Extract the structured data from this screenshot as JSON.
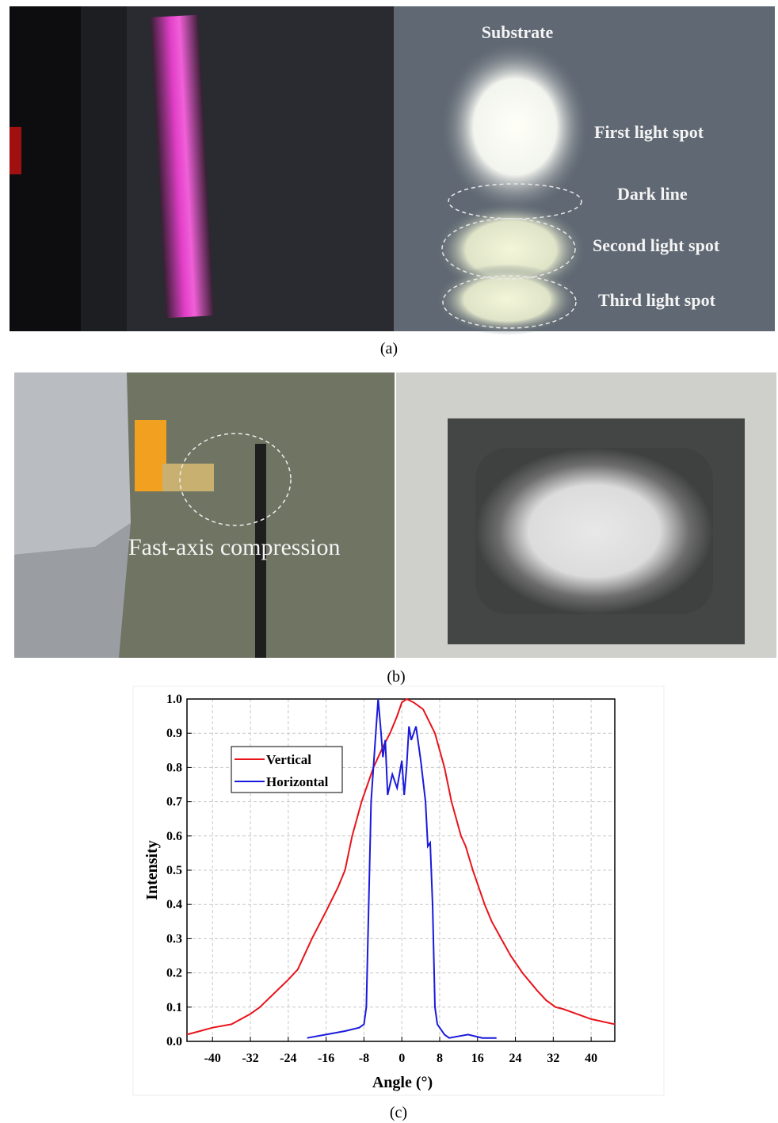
{
  "panel_a": {
    "labels": [
      "Substrate",
      "First light spot",
      "Dark line",
      "Second light spot",
      "Third light spot"
    ],
    "caption": "(a)"
  },
  "panel_b": {
    "label": "Fast-axis compression",
    "caption": "(b)"
  },
  "chart_data": {
    "type": "line",
    "xlabel": "Angle (°)",
    "ylabel": "Intensity",
    "caption": "(c)",
    "xlim": [
      -45.4,
      45
    ],
    "ylim": [
      0,
      1
    ],
    "xticks": [
      -40,
      -32,
      -24,
      -16,
      -8,
      0,
      8,
      16,
      24,
      32,
      40
    ],
    "yticks": [
      {
        "value": 0,
        "label": "0.0"
      },
      0.1,
      0.2,
      0.3,
      0.4,
      0.5,
      0.6,
      0.7,
      0.8,
      0.9,
      {
        "value": 1,
        "label": "1.0"
      }
    ],
    "grid": true,
    "legend": "upper left",
    "series": [
      {
        "name": "Vertical",
        "color": "#e8141b",
        "x": [
          -45.4,
          -40,
          -36,
          -32,
          -30,
          -27,
          -24,
          -22,
          -19,
          -16,
          -13.5,
          -12,
          -10.5,
          -8.5,
          -6,
          -4,
          -2.5,
          -1,
          0,
          1,
          2.5,
          4.5,
          7,
          9,
          10.5,
          12.5,
          13.5,
          15,
          17.5,
          19,
          21,
          23,
          25.5,
          28.5,
          30.5,
          32.5,
          34,
          37,
          40,
          45
        ],
        "values": [
          0.02,
          0.04,
          0.05,
          0.08,
          0.1,
          0.14,
          0.18,
          0.21,
          0.3,
          0.38,
          0.45,
          0.5,
          0.6,
          0.7,
          0.8,
          0.86,
          0.9,
          0.95,
          0.99,
          1.0,
          0.99,
          0.97,
          0.9,
          0.8,
          0.7,
          0.6,
          0.57,
          0.5,
          0.4,
          0.35,
          0.3,
          0.25,
          0.2,
          0.15,
          0.12,
          0.1,
          0.095,
          0.08,
          0.065,
          0.05
        ]
      },
      {
        "name": "Horizontal",
        "color": "#1a1adc",
        "x": [
          -20,
          -16,
          -12,
          -9,
          -8,
          -7.5,
          -7,
          -6.5,
          -5.5,
          -5,
          -4.5,
          -4,
          -3.5,
          -3,
          -2,
          -1,
          0,
          0.5,
          1,
          1.5,
          2,
          3,
          4,
          5,
          5.5,
          6,
          6.5,
          7,
          7.5,
          9,
          10,
          14,
          17,
          20
        ],
        "values": [
          0.01,
          0.02,
          0.03,
          0.04,
          0.05,
          0.1,
          0.4,
          0.7,
          0.9,
          1.0,
          0.92,
          0.83,
          0.88,
          0.72,
          0.78,
          0.74,
          0.82,
          0.72,
          0.8,
          0.92,
          0.88,
          0.92,
          0.82,
          0.7,
          0.57,
          0.58,
          0.4,
          0.1,
          0.05,
          0.02,
          0.01,
          0.02,
          0.01,
          0.01
        ]
      }
    ]
  }
}
